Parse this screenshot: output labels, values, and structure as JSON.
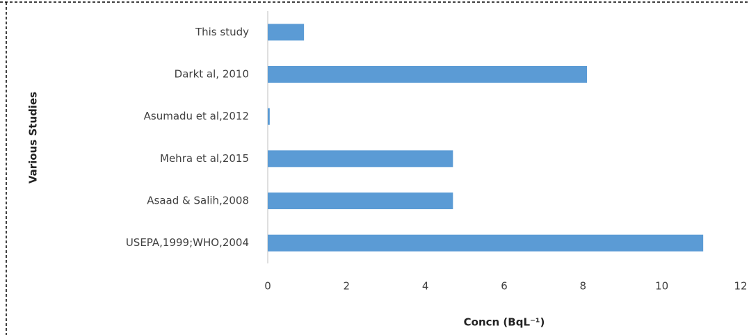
{
  "chart_data": {
    "type": "barh",
    "categories": [
      "This study",
      "Darkt al, 2010",
      "Asumadu et al,2012",
      "Mehra et al,2015",
      "Asaad & Salih,2008",
      "USEPA,1999;WHO,2004"
    ],
    "values": [
      0.92,
      8.1,
      0.05,
      4.7,
      4.7,
      11.05
    ],
    "color": "#5b9bd5",
    "xlim": [
      0,
      12
    ],
    "xticks": [
      0,
      2,
      4,
      6,
      8,
      10,
      12
    ],
    "x_label": "Concn (BqL⁻¹)",
    "y_label": "Various Studies",
    "grid": false
  }
}
